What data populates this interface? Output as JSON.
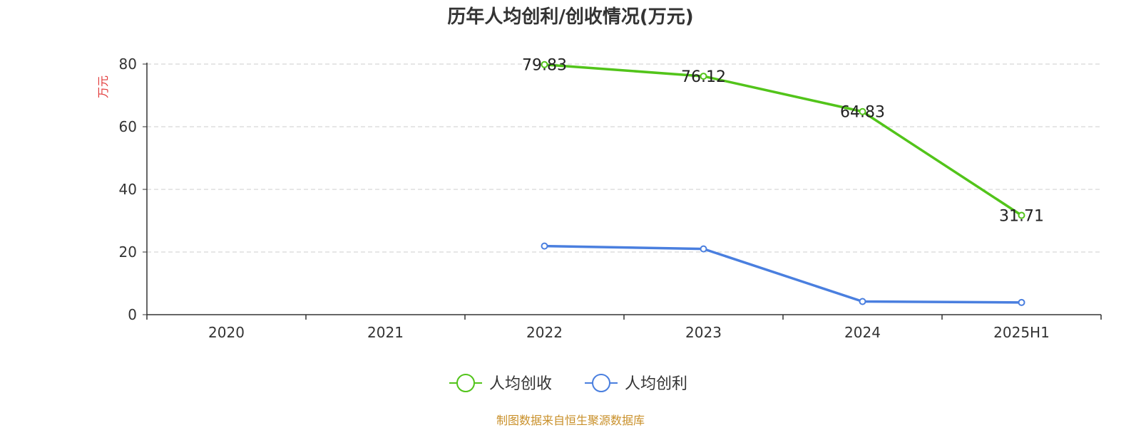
{
  "chart_data": {
    "type": "line",
    "title": "历年人均创利/创收情况(万元)",
    "ylabel": "万元",
    "categories": [
      "2020",
      "2021",
      "2022",
      "2023",
      "2024",
      "2025H1"
    ],
    "ylim": [
      0,
      80
    ],
    "yticks": [
      0,
      20,
      40,
      60,
      80
    ],
    "grid": true,
    "legend_position": "bottom-center",
    "series": [
      {
        "name": "人均创收",
        "color": "#52c41a",
        "values": [
          null,
          null,
          79.83,
          76.12,
          64.83,
          31.71
        ],
        "data_labels": [
          "",
          "",
          "79.83",
          "76.12",
          "64.83",
          "31.71"
        ]
      },
      {
        "name": "人均创利",
        "color": "#4a7fdf",
        "values": [
          null,
          null,
          21.9,
          21.0,
          4.2,
          3.9
        ],
        "data_labels": [
          "",
          "",
          "",
          "",
          "",
          ""
        ]
      }
    ]
  },
  "source_note": "制图数据来自恒生聚源数据库",
  "colors": {
    "title": "#333333",
    "axis": "#333333",
    "ylabel": "#e23b3b",
    "grid": "#cccccc",
    "source": "#c9902a"
  }
}
